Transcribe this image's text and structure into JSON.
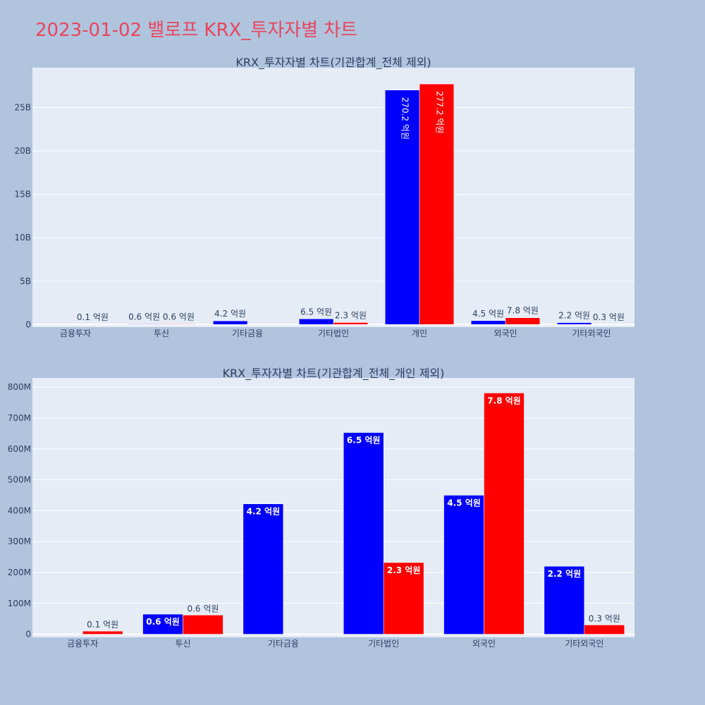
{
  "title": "2023-01-02 밸로프 KRX_투자자별 차트",
  "colors": {
    "background": "#b0c4de",
    "plot_bg": "#e5ecf6",
    "title": "#e8455c",
    "series_buy": "#0000ff",
    "series_sell": "#ff0000"
  },
  "chart_data": [
    {
      "type": "bar",
      "title": "KRX_투자자별 차트(기관합계_전체 제외)",
      "categories": [
        "금융투자",
        "투신",
        "기타금융",
        "기타법인",
        "개인",
        "외국인",
        "기타외국인"
      ],
      "yticks": [
        0,
        5000000000,
        10000000000,
        15000000000,
        20000000000,
        25000000000
      ],
      "ytick_labels": [
        "0",
        "5B",
        "10B",
        "15B",
        "20B",
        "25B"
      ],
      "ylim": [
        -300000000,
        29600000000
      ],
      "grid": true,
      "legend": "none",
      "series": [
        {
          "color": "#0000ff",
          "values": [
            0,
            60000000,
            420000000,
            650000000,
            27020000000,
            450000000,
            220000000
          ],
          "labels": [
            "",
            "0.6 억원",
            "4.2 억원",
            "6.5 억원",
            "270.2 억원",
            "4.5 억원",
            "2.2 억원"
          ]
        },
        {
          "color": "#ff0000",
          "values": [
            10000000,
            60000000,
            0,
            230000000,
            27720000000,
            780000000,
            30000000
          ],
          "labels": [
            "0.1 억원",
            "0.6 억원",
            "",
            "2.3 억원",
            "277.2 억원",
            "7.8 억원",
            "0.3 억원"
          ]
        }
      ]
    },
    {
      "type": "bar",
      "title": "KRX_투자자별 차트(기관합계_전체_개인 제외)",
      "categories": [
        "금융투자",
        "투신",
        "기타금융",
        "기타법인",
        "외국인",
        "기타외국인"
      ],
      "yticks": [
        0,
        100000000,
        200000000,
        300000000,
        400000000,
        500000000,
        600000000,
        700000000,
        800000000
      ],
      "ytick_labels": [
        "0",
        "100M",
        "200M",
        "300M",
        "400M",
        "500M",
        "600M",
        "700M",
        "800M"
      ],
      "ylim": [
        -10000000,
        830000000
      ],
      "grid": true,
      "legend": "none",
      "series": [
        {
          "color": "#0000ff",
          "values": [
            0,
            65000000,
            422000000,
            653000000,
            450000000,
            220000000
          ],
          "labels": [
            "",
            "0.6 억원",
            "4.2 억원",
            "6.5 억원",
            "4.5 억원",
            "2.2 억원"
          ]
        },
        {
          "color": "#ff0000",
          "values": [
            10000000,
            62000000,
            0,
            232000000,
            781000000,
            30000000
          ],
          "labels": [
            "0.1 억원",
            "0.6 억원",
            "",
            "2.3 억원",
            "7.8 억원",
            "0.3 억원"
          ]
        }
      ]
    }
  ]
}
